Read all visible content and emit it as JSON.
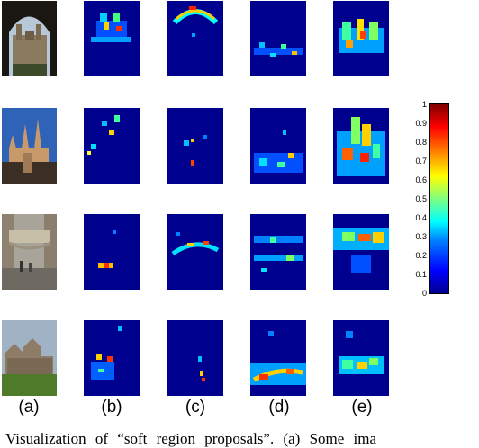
{
  "column_labels": [
    "(a)",
    "(b)",
    "(c)",
    "(d)",
    "(e)"
  ],
  "colorbar": {
    "ticks": [
      "1",
      "0.9",
      "0.8",
      "0.7",
      "0.6",
      "0.5",
      "0.4",
      "0.3",
      "0.2",
      "0.1",
      "0"
    ],
    "colormap": "jet",
    "range": [
      0,
      1
    ]
  },
  "caption": "Visualization of “soft region proposals”. (a) Some ima",
  "rows": [
    {
      "photo": "arched-gateway-college-building"
    },
    {
      "photo": "gothic-cathedral-blue-sky"
    },
    {
      "photo": "bridge-of-sighs-street"
    },
    {
      "photo": "victorian-building-lawn"
    }
  ]
}
